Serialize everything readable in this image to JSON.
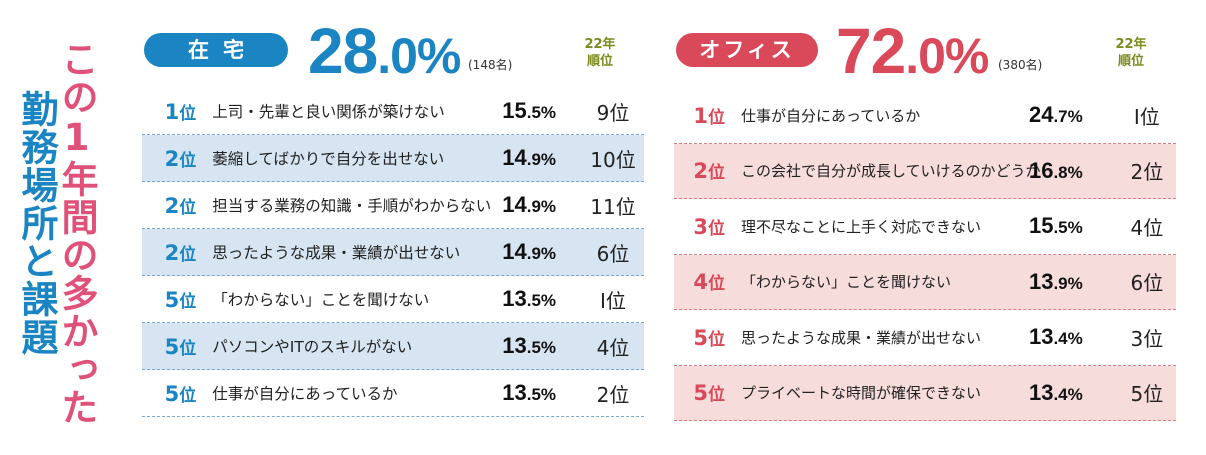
{
  "title": {
    "line1": "この1年間の多かった",
    "line2": "勤務場所と課題"
  },
  "prev_rank_header": "22年\n順位",
  "chart_data": [
    {
      "type": "table",
      "group": "在宅",
      "share": "28.0%",
      "count": "(148名)",
      "rows": [
        {
          "rank": "1",
          "issue": "上司・先輩と良い関係が築けない",
          "value": 15.5,
          "prev_rank": "9位"
        },
        {
          "rank": "2",
          "issue": "萎縮してばかりで自分を出せない",
          "value": 14.9,
          "prev_rank": "10位"
        },
        {
          "rank": "2",
          "issue": "担当する業務の知識・手順がわからない",
          "value": 14.9,
          "prev_rank": "11位"
        },
        {
          "rank": "2",
          "issue": "思ったような成果・業績が出せない",
          "value": 14.9,
          "prev_rank": "6位"
        },
        {
          "rank": "5",
          "issue": "「わからない」ことを聞けない",
          "value": 13.5,
          "prev_rank": "Ⅰ位"
        },
        {
          "rank": "5",
          "issue": "パソコンやITのスキルがない",
          "value": 13.5,
          "prev_rank": "4位"
        },
        {
          "rank": "5",
          "issue": "仕事が自分にあっているか",
          "value": 13.5,
          "prev_rank": "2位"
        }
      ]
    },
    {
      "type": "table",
      "group": "オフィス",
      "share": "72.0%",
      "count": "(380名)",
      "rows": [
        {
          "rank": "1",
          "issue": "仕事が自分にあっているか",
          "value": 24.7,
          "prev_rank": "Ⅰ位"
        },
        {
          "rank": "2",
          "issue": "この会社で自分が成長していけるのかどうか",
          "value": 16.8,
          "prev_rank": "2位"
        },
        {
          "rank": "3",
          "issue": "理不尽なことに上手く対応できない",
          "value": 15.5,
          "prev_rank": "4位"
        },
        {
          "rank": "4",
          "issue": "「わからない」ことを聞けない",
          "value": 13.9,
          "prev_rank": "6位"
        },
        {
          "rank": "5",
          "issue": "思ったような成果・業績が出せない",
          "value": 13.4,
          "prev_rank": "3位"
        },
        {
          "rank": "5",
          "issue": "プライベートな時間が確保できない",
          "value": 13.4,
          "prev_rank": "5位"
        }
      ]
    }
  ],
  "rank_suffix": "位",
  "colors": {
    "home": "#1a85c2",
    "office": "#d9495a",
    "home_row_bg": "#d6e5f1",
    "office_row_bg": "#f7dcdc",
    "title_pink": "#e0517a",
    "header_olive": "#7d8a1e"
  }
}
